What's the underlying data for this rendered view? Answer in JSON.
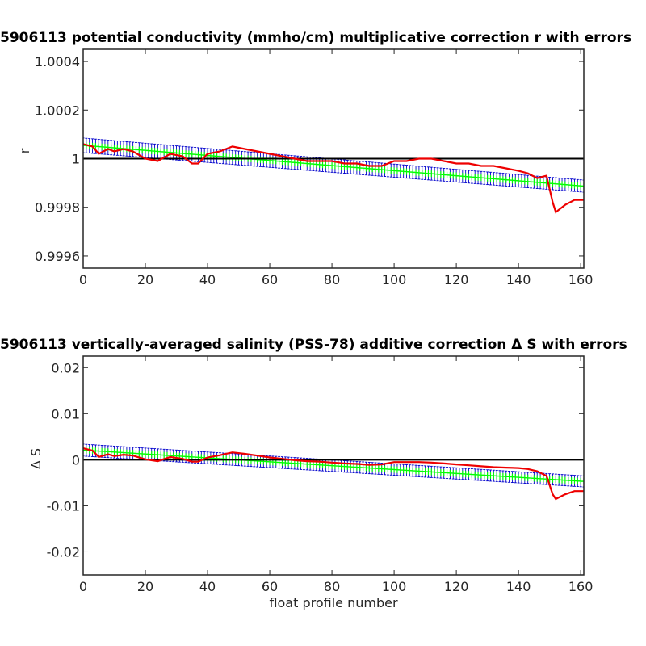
{
  "chart_data": [
    {
      "type": "line",
      "title": "5906113 potential conductivity (mmho/cm) multiplicative correction r with errors",
      "xlabel": "",
      "ylabel": "r",
      "xlim": [
        0,
        161
      ],
      "ylim": [
        0.99955,
        1.00045
      ],
      "xticks": [
        0,
        20,
        40,
        60,
        80,
        100,
        120,
        140,
        160
      ],
      "yticks": [
        0.9996,
        0.9998,
        1,
        1.0002,
        1.0004
      ],
      "ytick_labels": [
        "0.9996",
        "0.9998",
        "1",
        "1.0002",
        "1.0004"
      ],
      "grid": false,
      "colors": {
        "reference": "#000000",
        "fit": "#00ff00",
        "errorbars": "#0000cc",
        "raw": "#ee0000"
      },
      "series": [
        {
          "key": "reference",
          "values": [
            [
              0,
              1.0
            ],
            [
              161,
              1.0
            ]
          ]
        },
        {
          "key": "fit",
          "start": 1.000055,
          "end": 0.999887,
          "x": [
            0,
            161
          ]
        },
        {
          "key": "errorbars",
          "half_width_start": 3e-05,
          "half_width_end": 2.5e-05
        },
        {
          "key": "raw",
          "values": [
            [
              0,
              1.00006
            ],
            [
              3,
              1.00005
            ],
            [
              5,
              1.00002
            ],
            [
              8,
              1.00004
            ],
            [
              10,
              1.00003
            ],
            [
              13,
              1.00004
            ],
            [
              16,
              1.00003
            ],
            [
              20,
              1.0
            ],
            [
              24,
              0.99999
            ],
            [
              28,
              1.00002
            ],
            [
              32,
              1.00001
            ],
            [
              35,
              0.99998
            ],
            [
              37,
              0.99998
            ],
            [
              40,
              1.00002
            ],
            [
              44,
              1.00003
            ],
            [
              48,
              1.00005
            ],
            [
              52,
              1.00004
            ],
            [
              56,
              1.00003
            ],
            [
              60,
              1.00002
            ],
            [
              64,
              1.00001
            ],
            [
              68,
              1.0
            ],
            [
              72,
              0.99999
            ],
            [
              76,
              0.99999
            ],
            [
              80,
              0.99999
            ],
            [
              84,
              0.99998
            ],
            [
              88,
              0.99998
            ],
            [
              92,
              0.99997
            ],
            [
              96,
              0.99997
            ],
            [
              100,
              0.99999
            ],
            [
              104,
              0.99999
            ],
            [
              108,
              1.0
            ],
            [
              112,
              1.0
            ],
            [
              116,
              0.99999
            ],
            [
              120,
              0.99998
            ],
            [
              124,
              0.99998
            ],
            [
              128,
              0.99997
            ],
            [
              132,
              0.99997
            ],
            [
              136,
              0.99996
            ],
            [
              140,
              0.99995
            ],
            [
              143,
              0.99994
            ],
            [
              146,
              0.99992
            ],
            [
              149,
              0.99993
            ],
            [
              151,
              0.99982
            ],
            [
              152,
              0.99978
            ],
            [
              155,
              0.99981
            ],
            [
              158,
              0.99983
            ],
            [
              161,
              0.99983
            ]
          ]
        }
      ]
    },
    {
      "type": "line",
      "title": "5906113 vertically-averaged salinity (PSS-78) additive correction Δ S with errors",
      "xlabel": "float profile number",
      "ylabel": "Δ S",
      "xlim": [
        0,
        161
      ],
      "ylim": [
        -0.025,
        0.0225
      ],
      "xticks": [
        0,
        20,
        40,
        60,
        80,
        100,
        120,
        140,
        160
      ],
      "yticks": [
        -0.02,
        -0.01,
        0,
        0.01,
        0.02
      ],
      "ytick_labels": [
        "-0.02",
        "-0.01",
        "0",
        "0.01",
        "0.02"
      ],
      "grid": false,
      "colors": {
        "reference": "#000000",
        "fit": "#00ff00",
        "errorbars": "#0000cc",
        "raw": "#ee0000"
      },
      "series": [
        {
          "key": "reference",
          "values": [
            [
              0,
              0
            ],
            [
              161,
              0
            ]
          ]
        },
        {
          "key": "fit",
          "start": 0.0021,
          "end": -0.0047,
          "x": [
            0,
            161
          ]
        },
        {
          "key": "errorbars",
          "half_width_start": 0.0013,
          "half_width_end": 0.0012
        },
        {
          "key": "raw",
          "values": [
            [
              0,
              0.0025
            ],
            [
              3,
              0.002
            ],
            [
              5,
              0.0006
            ],
            [
              8,
              0.0012
            ],
            [
              10,
              0.0008
            ],
            [
              13,
              0.0011
            ],
            [
              16,
              0.0009
            ],
            [
              20,
              0.0001
            ],
            [
              24,
              -0.0003
            ],
            [
              28,
              0.0006
            ],
            [
              32,
              0.0002
            ],
            [
              35,
              -0.0004
            ],
            [
              37,
              -0.0004
            ],
            [
              40,
              0.0005
            ],
            [
              44,
              0.001
            ],
            [
              48,
              0.0016
            ],
            [
              52,
              0.0013
            ],
            [
              56,
              0.0009
            ],
            [
              60,
              0.0005
            ],
            [
              64,
              0.0002
            ],
            [
              68,
              -0.0001
            ],
            [
              72,
              -0.0003
            ],
            [
              76,
              -0.0004
            ],
            [
              80,
              -0.0006
            ],
            [
              84,
              -0.0008
            ],
            [
              88,
              -0.0009
            ],
            [
              92,
              -0.0011
            ],
            [
              96,
              -0.001
            ],
            [
              100,
              -0.0005
            ],
            [
              104,
              -0.0005
            ],
            [
              108,
              -0.0005
            ],
            [
              112,
              -0.0006
            ],
            [
              116,
              -0.0008
            ],
            [
              120,
              -0.001
            ],
            [
              124,
              -0.0012
            ],
            [
              128,
              -0.0014
            ],
            [
              132,
              -0.0016
            ],
            [
              136,
              -0.0017
            ],
            [
              140,
              -0.0018
            ],
            [
              143,
              -0.002
            ],
            [
              146,
              -0.0025
            ],
            [
              149,
              -0.0035
            ],
            [
              151,
              -0.0075
            ],
            [
              152,
              -0.0085
            ],
            [
              155,
              -0.0075
            ],
            [
              158,
              -0.0068
            ],
            [
              161,
              -0.0068
            ]
          ]
        }
      ]
    }
  ]
}
